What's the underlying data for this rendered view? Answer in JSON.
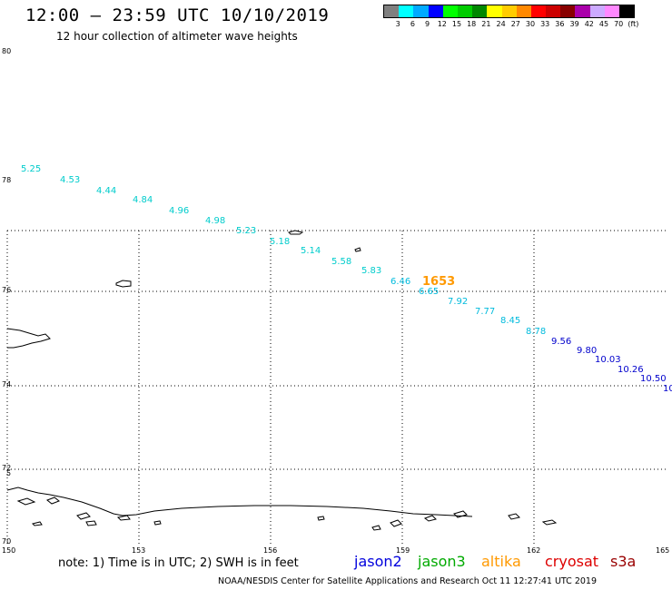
{
  "header": {
    "title": "12:00 – 23:59 UTC 10/10/2019",
    "subtitle": "12 hour collection of altimeter wave heights"
  },
  "scale": {
    "colors": [
      "#808080",
      "#00ffff",
      "#00aaff",
      "#0000ff",
      "#00ff00",
      "#00cc00",
      "#008800",
      "#ffff00",
      "#ffcc00",
      "#ff8800",
      "#ff0000",
      "#cc0000",
      "#880000",
      "#aa00aa",
      "#ccaaff",
      "#ff88ff",
      "#000000"
    ],
    "labels": [
      "3",
      "6",
      "9",
      "12",
      "15",
      "18",
      "21",
      "24",
      "27",
      "30",
      "33",
      "36",
      "39",
      "42",
      "45",
      "70",
      "(ft)"
    ]
  },
  "axes": {
    "lat_labels": [
      "80",
      "78",
      "76",
      "74",
      "72",
      "70"
    ],
    "lat_small": [
      "5"
    ],
    "lon_labels": [
      "150",
      "153",
      "156",
      "159",
      "162",
      "165"
    ]
  },
  "track": {
    "jason3_color": "#00cccc",
    "jason2_color": "#0000cc",
    "time_label": "1653",
    "time_color": "#ff9900",
    "points": [
      {
        "v": "5.25",
        "sat": "a"
      },
      {
        "v": "4.53",
        "sat": "a"
      },
      {
        "v": "4.44",
        "sat": "a"
      },
      {
        "v": "4.84",
        "sat": "a"
      },
      {
        "v": "4.96",
        "sat": "a"
      },
      {
        "v": "4.98",
        "sat": "a"
      },
      {
        "v": "5.23",
        "sat": "a"
      },
      {
        "v": "5.18",
        "sat": "a"
      },
      {
        "v": "5.14",
        "sat": "a"
      },
      {
        "v": "5.58",
        "sat": "a"
      },
      {
        "v": "5.83",
        "sat": "a"
      },
      {
        "v": "6.46",
        "sat": "b"
      },
      {
        "v": "6.65",
        "sat": "b"
      },
      {
        "v": "7.92",
        "sat": "b"
      },
      {
        "v": "7.77",
        "sat": "b"
      },
      {
        "v": "8.45",
        "sat": "b"
      },
      {
        "v": "8.78",
        "sat": "b"
      },
      {
        "v": "9.56",
        "sat": "c"
      },
      {
        "v": "9.80",
        "sat": "c"
      },
      {
        "v": "10.03",
        "sat": "c"
      },
      {
        "v": "10.26",
        "sat": "c"
      },
      {
        "v": "10.50",
        "sat": "c"
      },
      {
        "v": "10",
        "sat": "c"
      }
    ]
  },
  "note": "note: 1) Time is in UTC; 2) SWH is in feet",
  "satellites": [
    {
      "name": "jason2",
      "color": "#0000dd"
    },
    {
      "name": "jason3",
      "color": "#00aa00"
    },
    {
      "name": "altika",
      "color": "#ff9900"
    },
    {
      "name": "cryosat",
      "color": "#dd0000"
    },
    {
      "name": "s3a",
      "color": "#990000"
    }
  ],
  "footer": "NOAA/NESDIS Center for Satellite Applications and Research    Oct 11 12:27:41 UTC 2019"
}
